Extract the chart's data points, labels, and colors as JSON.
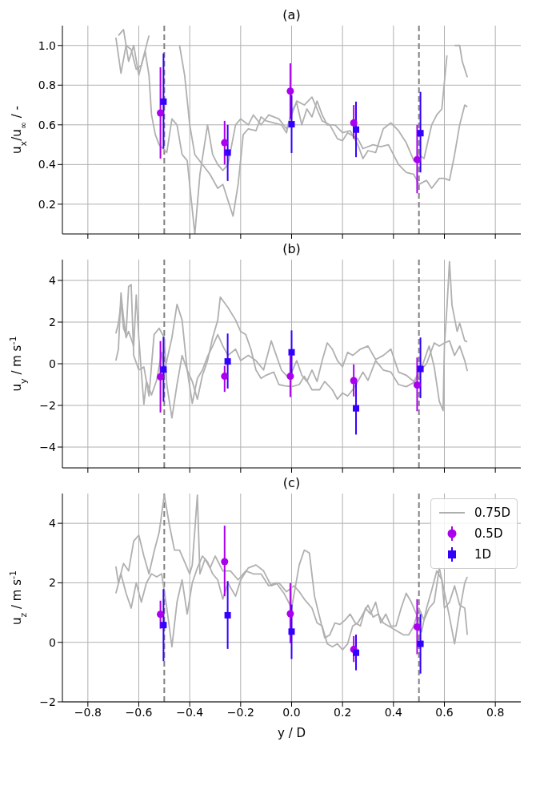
{
  "chart_data": [
    {
      "type": "line",
      "title": "(a)",
      "ylabel": "u$_{x}$/u$_{∞}$ / -",
      "xlim": [
        -0.9,
        0.9
      ],
      "xticks": [
        {
          "value": -0.8,
          "label": null
        },
        {
          "value": -0.6,
          "label": null
        },
        {
          "value": -0.4,
          "label": null
        },
        {
          "value": -0.2,
          "label": null
        },
        {
          "value": 0,
          "label": null
        },
        {
          "value": 0.2,
          "label": null
        },
        {
          "value": 0.4,
          "label": null
        },
        {
          "value": 0.6,
          "label": null
        },
        {
          "value": 0.8,
          "label": null
        }
      ],
      "ylim": [
        0.05,
        1.1
      ],
      "yticks": [
        0.2,
        0.4,
        0.6,
        0.8,
        {
          "value": 1,
          "label": "1.0"
        }
      ],
      "grid": true,
      "tick_labels": "y",
      "line_style": "solid",
      "ref_lines": [
        {
          "axis": "x",
          "value": -0.5,
          "color": "#808080",
          "line_style": "dashed"
        },
        {
          "axis": "x",
          "value": 0.5,
          "color": "#808080",
          "line_style": "dashed"
        }
      ],
      "series": [
        {
          "type": "line",
          "color": "#b0b0b0",
          "marker": "none",
          "x": [
            -0.69,
            -0.67,
            -0.65,
            -0.63,
            -0.61,
            -0.59,
            -0.575,
            -0.56,
            -0.55,
            -0.535,
            -0.52,
            -0.49,
            -0.47,
            -0.45,
            -0.43,
            -0.41,
            -0.38,
            -0.36,
            -0.33,
            -0.31,
            -0.29,
            -0.27,
            -0.25,
            -0.22,
            -0.2,
            -0.17,
            -0.15,
            -0.12,
            -0.09,
            -0.05,
            -0.02,
            0.02,
            0.05,
            0.08,
            0.1,
            0.12,
            0.15,
            0.18,
            0.2,
            0.22,
            0.26,
            0.28,
            0.32,
            0.35,
            0.38,
            0.42,
            0.45,
            0.48,
            0.5,
            0.53,
            0.55,
            0.58,
            0.6,
            0.62,
            0.64,
            0.66,
            0.68,
            0.69
          ],
          "values": [
            1.04,
            0.86,
            1.0,
            0.98,
            0.88,
            0.9,
            0.97,
            0.85,
            0.65,
            0.55,
            0.5,
            0.46,
            0.63,
            0.6,
            0.45,
            0.42,
            0.05,
            0.35,
            0.6,
            0.45,
            0.4,
            0.37,
            0.4,
            0.6,
            0.63,
            0.6,
            0.65,
            0.6,
            0.65,
            0.63,
            0.58,
            0.72,
            0.7,
            0.74,
            0.68,
            0.62,
            0.6,
            0.53,
            0.52,
            0.56,
            0.53,
            0.48,
            0.5,
            0.49,
            0.5,
            0.4,
            0.36,
            0.35,
            0.3,
            0.32,
            0.28,
            0.33,
            0.33,
            0.32,
            0.45,
            0.6,
            0.7,
            0.69
          ]
        },
        {
          "type": "line",
          "color": "#b0b0b0",
          "marker": "none",
          "x": [
            -0.68,
            -0.66,
            -0.64,
            -0.62,
            -0.6,
            -0.58,
            -0.56,
            -0.54,
            -0.46,
            -0.44,
            -0.42,
            -0.4,
            -0.38,
            -0.35,
            -0.32,
            -0.29,
            -0.27,
            -0.25,
            -0.23,
            -0.21,
            -0.19,
            -0.17,
            -0.14,
            -0.12,
            -0.1,
            -0.07,
            -0.04,
            -0.02,
            0,
            0.02,
            0.04,
            0.06,
            0.08,
            0.1,
            0.12,
            0.14,
            0.17,
            0.2,
            0.23,
            0.26,
            0.28,
            0.3,
            0.33,
            0.36,
            0.39,
            0.42,
            0.45,
            0.48,
            0.5,
            0.52,
            0.55,
            0.57,
            0.59,
            0.61,
            0.62,
            0.64,
            0.66,
            0.67,
            0.69
          ],
          "values": [
            1.05,
            1.08,
            0.92,
            1.0,
            0.85,
            0.95,
            1.05,
            null,
            null,
            1.0,
            0.85,
            0.6,
            0.45,
            0.4,
            0.35,
            0.28,
            0.3,
            0.22,
            0.14,
            0.3,
            0.55,
            0.58,
            0.57,
            0.64,
            0.62,
            0.61,
            0.6,
            0.56,
            0.67,
            0.71,
            0.6,
            0.68,
            0.64,
            0.72,
            0.65,
            0.6,
            0.6,
            0.56,
            0.57,
            0.5,
            0.43,
            0.47,
            0.46,
            0.58,
            0.61,
            0.57,
            0.51,
            0.42,
            0.45,
            0.43,
            0.6,
            0.65,
            0.68,
            0.95,
            null,
            1.0,
            1.0,
            0.92,
            0.84
          ]
        },
        {
          "type": "scatter",
          "color": "#aa00ee",
          "marker": "circle",
          "x": [
            -0.515,
            -0.263,
            -0.005,
            0.244,
            0.493
          ],
          "values": [
            0.66,
            0.51,
            0.77,
            0.61,
            0.425
          ],
          "errors": [
            [
              0.43,
              0.89
            ],
            [
              0.4,
              0.62
            ],
            [
              0.63,
              0.91
            ],
            [
              0.53,
              0.7
            ],
            [
              0.255,
              0.6
            ]
          ]
        },
        {
          "type": "scatter",
          "color": "#3300ff",
          "marker": "square",
          "x": [
            -0.503,
            -0.251,
            0.0,
            0.253,
            0.506
          ],
          "values": [
            0.717,
            0.46,
            0.603,
            0.576,
            0.558
          ],
          "errors": [
            [
              0.48,
              0.96
            ],
            [
              0.317,
              0.6
            ],
            [
              0.458,
              0.75
            ],
            [
              0.437,
              0.717
            ],
            [
              0.36,
              0.766
            ]
          ]
        }
      ]
    },
    {
      "type": "line",
      "title": "(b)",
      "ylabel": "u$_{y}$ / m s$^{-1}$",
      "xlim": [
        -0.9,
        0.9
      ],
      "xticks": [
        {
          "value": -0.8,
          "label": null
        },
        {
          "value": -0.6,
          "label": null
        },
        {
          "value": -0.4,
          "label": null
        },
        {
          "value": -0.2,
          "label": null
        },
        {
          "value": 0,
          "label": null
        },
        {
          "value": 0.2,
          "label": null
        },
        {
          "value": 0.4,
          "label": null
        },
        {
          "value": 0.6,
          "label": null
        },
        {
          "value": 0.8,
          "label": null
        }
      ],
      "ylim": [
        -5,
        5
      ],
      "yticks": [
        {
          "value": -4,
          "label": "−4"
        },
        {
          "value": -2,
          "label": "−2"
        },
        0,
        2,
        4
      ],
      "grid": true,
      "tick_labels": "y",
      "line_style": "solid",
      "ref_lines": [
        {
          "axis": "x",
          "value": -0.5,
          "color": "#808080",
          "line_style": "dashed"
        },
        {
          "axis": "x",
          "value": 0.5,
          "color": "#808080",
          "line_style": "dashed"
        }
      ],
      "series": [
        {
          "type": "line",
          "color": "#b0b0b0",
          "marker": "none",
          "x": [
            -0.69,
            -0.68,
            -0.67,
            -0.66,
            -0.65,
            -0.64,
            -0.63,
            -0.62,
            -0.61,
            -0.6,
            -0.59,
            -0.58,
            -0.57,
            -0.55,
            -0.53,
            -0.51,
            -0.5,
            -0.49,
            -0.47,
            -0.45,
            -0.43,
            -0.41,
            -0.39,
            -0.37,
            -0.35,
            -0.33,
            -0.31,
            -0.29,
            -0.28,
            -0.25,
            -0.22,
            -0.2,
            -0.18,
            -0.16,
            -0.14,
            -0.12,
            -0.1,
            -0.07,
            -0.05,
            -0.03,
            0,
            0.03,
            0.05,
            0.08,
            0.11,
            0.13,
            0.16,
            0.18,
            0.2,
            0.22,
            0.24,
            0.26,
            0.28,
            0.3,
            0.33,
            0.36,
            0.39,
            0.42,
            0.45,
            0.48,
            0.5,
            0.52,
            0.54,
            0.56,
            0.58,
            0.595,
            0.6,
            0.61,
            0.62,
            0.63,
            0.65,
            0.66,
            0.68,
            0.69
          ],
          "values": [
            0.15,
            0.7,
            3.4,
            2.2,
            1.25,
            1.55,
            1.2,
            0.85,
            3.3,
            1.25,
            -0.4,
            -1.95,
            -0.85,
            -1.5,
            -0.8,
            0.55,
            -0.5,
            0.15,
            1.25,
            2.85,
            2.1,
            -0.3,
            -0.85,
            -1.7,
            -0.55,
            0.15,
            1.25,
            2.1,
            3.2,
            2.7,
            2.1,
            1.55,
            1.4,
            0.7,
            -0.3,
            -0.7,
            -0.55,
            -0.4,
            -1.0,
            -1.05,
            -1.1,
            -1.0,
            -0.6,
            -1.25,
            -1.25,
            -0.85,
            -1.25,
            -1.7,
            -1.4,
            -1.55,
            -1.25,
            -0.85,
            -0.4,
            -0.8,
            0.15,
            -0.3,
            -0.4,
            -1.0,
            -1.1,
            -0.9,
            -0.55,
            0.15,
            0.85,
            -0.15,
            -1.8,
            -2.25,
            0.85,
            2.7,
            4.9,
            2.8,
            1.55,
            1.95,
            1.1,
            1.05
          ]
        },
        {
          "type": "line",
          "color": "#b0b0b0",
          "marker": "none",
          "x": [
            -0.69,
            -0.68,
            -0.67,
            -0.66,
            -0.65,
            -0.64,
            -0.63,
            -0.62,
            -0.6,
            -0.58,
            -0.56,
            -0.54,
            -0.52,
            -0.5,
            -0.49,
            -0.47,
            -0.45,
            -0.43,
            -0.41,
            -0.39,
            -0.37,
            -0.35,
            -0.33,
            -0.31,
            -0.29,
            -0.27,
            -0.25,
            -0.22,
            -0.2,
            -0.17,
            -0.14,
            -0.11,
            -0.08,
            -0.06,
            -0.04,
            -0.01,
            0.02,
            0.04,
            0.06,
            0.08,
            0.1,
            0.12,
            0.14,
            0.16,
            0.18,
            0.2,
            0.22,
            0.24,
            0.27,
            0.3,
            0.33,
            0.36,
            0.39,
            0.42,
            0.45,
            0.48,
            0.5,
            0.53,
            0.56,
            0.58,
            0.6,
            0.62,
            0.64,
            0.66,
            0.68,
            0.69
          ],
          "values": [
            1.45,
            1.95,
            2.9,
            1.7,
            1.4,
            3.7,
            3.8,
            0.4,
            -0.3,
            -0.15,
            -1.55,
            1.4,
            1.7,
            1.25,
            -1.0,
            -2.6,
            -1.0,
            0.4,
            -0.3,
            -1.9,
            -0.7,
            -0.3,
            0.35,
            0.85,
            1.4,
            0.85,
            0.4,
            0.7,
            0.15,
            0.4,
            0.15,
            -0.3,
            1.1,
            0.4,
            -0.3,
            -0.7,
            0.15,
            -0.55,
            -0.85,
            -0.3,
            -0.85,
            0.15,
            1.0,
            0.7,
            0.15,
            -0.15,
            0.55,
            0.4,
            0.7,
            0.85,
            0.2,
            0.4,
            0.7,
            -0.4,
            -0.55,
            -0.85,
            -0.4,
            0,
            1.0,
            0.85,
            1.0,
            1.1,
            0.4,
            0.85,
            0.15,
            -0.35
          ]
        },
        {
          "type": "scatter",
          "color": "#aa00ee",
          "marker": "circle",
          "x": [
            -0.515,
            -0.263,
            -0.005,
            0.244,
            0.493
          ],
          "values": [
            -0.63,
            -0.6,
            -0.6,
            -0.81,
            -1.02
          ],
          "errors": [
            [
              -2.34,
              1.09
            ],
            [
              -1.35,
              -0.1
            ],
            [
              -1.6,
              0.4
            ],
            [
              -1.57,
              -0.03
            ],
            [
              -2.28,
              0.3
            ]
          ]
        },
        {
          "type": "scatter",
          "color": "#3300ff",
          "marker": "square",
          "x": [
            -0.503,
            -0.251,
            0.0,
            0.253,
            0.506
          ],
          "values": [
            -0.28,
            0.11,
            0.55,
            -2.14,
            -0.25
          ],
          "errors": [
            [
              -1.82,
              1.29
            ],
            [
              -1.19,
              1.45
            ],
            [
              -0.55,
              1.6
            ],
            [
              -3.4,
              -0.87
            ],
            [
              -1.65,
              1.26
            ]
          ]
        }
      ]
    },
    {
      "type": "line",
      "title": "(c)",
      "xlabel": "y / D",
      "ylabel": "u$_{z}$ / m s$^{-1}$",
      "xlim": [
        -0.9,
        0.9
      ],
      "xticks": [
        {
          "value": -0.8,
          "label": "−0.8"
        },
        {
          "value": -0.6,
          "label": "−0.6"
        },
        {
          "value": -0.4,
          "label": "−0.4"
        },
        {
          "value": -0.2,
          "label": "−0.2"
        },
        {
          "value": 0,
          "label": "0.0"
        },
        0.2,
        0.4,
        0.6,
        0.8
      ],
      "ylim": [
        -2,
        5
      ],
      "yticks": [
        {
          "value": -2,
          "label": "−2"
        },
        0,
        2,
        4
      ],
      "grid": true,
      "legend": "top right",
      "line_style": "solid",
      "ref_lines": [
        {
          "axis": "x",
          "value": -0.5,
          "color": "#808080",
          "line_style": "dashed"
        },
        {
          "axis": "x",
          "value": 0.5,
          "color": "#808080",
          "line_style": "dashed"
        }
      ],
      "series": [
        {
          "type": "line",
          "name": "0.75D",
          "color": "#b0b0b0",
          "marker": "none",
          "x": [
            -0.69,
            -0.68,
            -0.66,
            -0.64,
            -0.62,
            -0.6,
            -0.58,
            -0.56,
            -0.54,
            -0.52,
            -0.5,
            -0.48,
            -0.46,
            -0.44,
            -0.42,
            -0.4,
            -0.39,
            -0.37,
            -0.36,
            -0.34,
            -0.32,
            -0.3,
            -0.27,
            -0.24,
            -0.21,
            -0.18,
            -0.15,
            -0.12,
            -0.09,
            -0.06,
            -0.03,
            0,
            0.03,
            0.05,
            0.07,
            0.09,
            0.11,
            0.13,
            0.15,
            0.17,
            0.19,
            0.21,
            0.23,
            0.25,
            0.27,
            0.29,
            0.31,
            0.33,
            0.35,
            0.37,
            0.39,
            0.41,
            0.43,
            0.45,
            0.47,
            0.49,
            0.51,
            0.53,
            0.55,
            0.57,
            0.59,
            0.6,
            0.62,
            0.64,
            0.66,
            0.68,
            0.69
          ],
          "values": [
            2.55,
            2.0,
            2.65,
            2.4,
            3.4,
            3.6,
            2.9,
            2.3,
            3.05,
            3.7,
            4.95,
            3.95,
            3.1,
            3.1,
            2.7,
            2.3,
            2.6,
            4.95,
            2.3,
            2.8,
            2.5,
            2.9,
            2.4,
            2.4,
            2.1,
            2.4,
            2.3,
            2.3,
            1.9,
            2.0,
            1.65,
            1.15,
            2.6,
            3.1,
            3.0,
            1.55,
            0.85,
            0.15,
            0.25,
            0.65,
            0.6,
            0.75,
            0.95,
            0.65,
            0.55,
            1.15,
            0.95,
            1.35,
            0.65,
            0.95,
            0.55,
            0.55,
            1.15,
            1.65,
            1.35,
            0.95,
            0.35,
            1.15,
            1.75,
            2.4,
            2.1,
            1.15,
            1.35,
            1.9,
            1.25,
            1.15,
            0.25
          ]
        },
        {
          "type": "line",
          "color": "#b0b0b0",
          "marker": "none",
          "x": [
            -0.69,
            -0.67,
            -0.65,
            -0.63,
            -0.61,
            -0.59,
            -0.57,
            -0.55,
            -0.53,
            -0.51,
            -0.49,
            -0.47,
            -0.45,
            -0.43,
            -0.41,
            -0.39,
            -0.37,
            -0.35,
            -0.33,
            -0.31,
            -0.29,
            -0.27,
            -0.25,
            -0.22,
            -0.2,
            -0.17,
            -0.14,
            -0.11,
            -0.08,
            -0.05,
            -0.02,
            0.01,
            0.03,
            0.05,
            0.08,
            0.1,
            0.12,
            0.14,
            0.16,
            0.18,
            0.2,
            0.22,
            0.24,
            0.26,
            0.28,
            0.3,
            0.32,
            0.34,
            0.36,
            0.38,
            0.4,
            0.42,
            0.44,
            0.46,
            0.48,
            0.5,
            0.52,
            0.54,
            0.56,
            0.58,
            0.6,
            0.62,
            0.64,
            0.66,
            0.68,
            0.69
          ],
          "values": [
            1.65,
            2.3,
            1.65,
            1.15,
            2.0,
            1.35,
            2.0,
            2.3,
            2.2,
            2.3,
            1.15,
            -0.15,
            1.35,
            2.1,
            0.95,
            2.0,
            2.5,
            2.9,
            2.7,
            2.3,
            2.1,
            1.45,
            2.0,
            1.55,
            2.1,
            2.5,
            2.6,
            2.4,
            1.9,
            2.0,
            1.7,
            1.9,
            1.7,
            1.45,
            1.15,
            0.65,
            0.55,
            -0.05,
            -0.15,
            -0.05,
            -0.25,
            -0.05,
            0.55,
            0.65,
            0.95,
            1.25,
            0.85,
            0.95,
            0.65,
            0.55,
            0.45,
            0.35,
            0.25,
            0.25,
            0.55,
            1.15,
            0.75,
            1.15,
            1.35,
            2.5,
            1.7,
            0.85,
            -0.05,
            1.05,
            2.0,
            2.2
          ]
        },
        {
          "type": "scatter",
          "name": "0.5D",
          "color": "#aa00ee",
          "marker": "circle",
          "x": [
            -0.515,
            -0.263,
            -0.005,
            0.244,
            0.493
          ],
          "values": [
            0.94,
            2.71,
            0.96,
            -0.24,
            0.52
          ],
          "errors": [
            [
              0.46,
              1.4
            ],
            [
              1.55,
              3.92
            ],
            [
              -0.03,
              1.99
            ],
            [
              -0.66,
              0.21
            ],
            [
              -0.4,
              1.45
            ]
          ]
        },
        {
          "type": "scatter",
          "name": "1D",
          "color": "#3300ff",
          "marker": "square",
          "x": [
            -0.503,
            -0.251,
            0.0,
            0.253,
            0.506
          ],
          "values": [
            0.58,
            0.91,
            0.36,
            -0.35,
            -0.05
          ],
          "errors": [
            [
              -0.63,
              1.79
            ],
            [
              -0.22,
              2.06
            ],
            [
              -0.56,
              1.27
            ],
            [
              -0.94,
              0.26
            ],
            [
              -1.05,
              0.95
            ]
          ]
        }
      ]
    }
  ]
}
